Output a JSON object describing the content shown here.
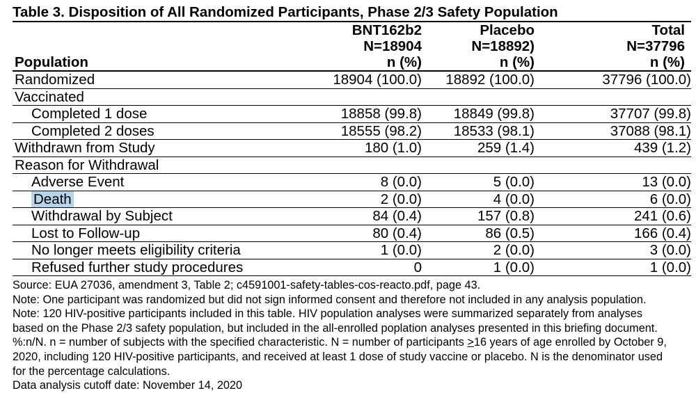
{
  "title": "Table 3. Disposition of All Randomized Participants, Phase 2/3 Safety Population",
  "highlight_color": "#b6d5ea",
  "table": {
    "row_header_label": "Population",
    "columns": [
      {
        "name": "BNT162b2",
        "n": "N=18904",
        "unit": "n (%)"
      },
      {
        "name": "Placebo",
        "n": "N=18892)",
        "unit": "n (%)"
      },
      {
        "name": "Total",
        "n": "N=37796",
        "unit": "n (%)"
      }
    ],
    "rows": [
      {
        "label": "Randomized",
        "values": [
          "18904 (100.0)",
          "18892 (100.0)",
          "37796 (100.0)"
        ]
      },
      {
        "label": "Vaccinated",
        "values": [
          "",
          "",
          ""
        ]
      },
      {
        "label": "Completed 1 dose",
        "values": [
          "18858 (99.8)",
          "18849 (99.8)",
          "37707 (99.8)"
        ]
      },
      {
        "label": "Completed 2 doses",
        "values": [
          "18555 (98.2)",
          "18533 (98.1)",
          "37088 (98.1)"
        ]
      },
      {
        "label": "Withdrawn from Study",
        "values": [
          "180 (1.0)",
          "259 (1.4)",
          "439 (1.2)"
        ]
      },
      {
        "label": "Reason for Withdrawal",
        "values": [
          "",
          "",
          ""
        ]
      },
      {
        "label": "Adverse Event",
        "values": [
          "8 (0.0)",
          "5 (0.0)",
          "13 (0.0)"
        ]
      },
      {
        "label": "Death",
        "values": [
          "2 (0.0)",
          "4 (0.0)",
          "6 (0.0)"
        ]
      },
      {
        "label": "Withdrawal by Subject",
        "values": [
          "84 (0.4)",
          "157 (0.8)",
          "241 (0.6)"
        ]
      },
      {
        "label": "Lost to Follow-up",
        "values": [
          "80 (0.4)",
          "86 (0.5)",
          "166 (0.4)"
        ]
      },
      {
        "label": "No longer meets eligibility criteria",
        "values": [
          "1 (0.0)",
          "2 (0.0)",
          "3 (0.0)"
        ]
      },
      {
        "label": "Refused further study procedures",
        "values": [
          "0",
          "1 (0.0)",
          "1 (0.0)"
        ]
      }
    ]
  },
  "footnotes": {
    "source": "Source: EUA 27036, amendment 3, Table 2; c4591001-safety-tables-cos-reacto.pdf, page 43.",
    "note1": "Note: One participant was randomized but did not sign informed consent and therefore not included in any analysis population.",
    "note2_line1": "Note: 120 HIV-positive participants included in this table. HIV population analyses were summarized separately from analyses",
    "note2_line2": "based on the Phase 2/3 safety population, but included in the all-enrolled poplation analyses presented in this briefing document.",
    "note3_line1_pre": "%:n/N. n = number of subjects with the specified characteristic. N = number of participants ",
    "note3_geq": ">",
    "note3_line1_post": "16 years of age enrolled by October 9,",
    "note3_line2": "2020, including 120 HIV-positive participants, and received at least 1 dose of study vaccine or placebo. N is the denominator used",
    "note3_line3": "for the percentage calculations.",
    "cutoff": "Data analysis cutoff date: November 14, 2020"
  }
}
